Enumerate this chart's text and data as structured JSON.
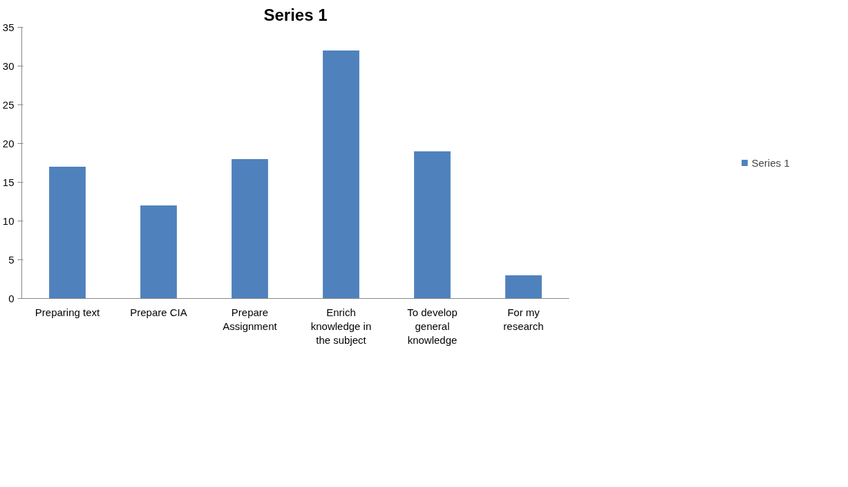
{
  "chart_data": {
    "type": "bar",
    "title": "Series 1",
    "categories": [
      "Preparing text",
      "Prepare CIA",
      "Prepare Assignment",
      "Enrich knowledge in the subject",
      "To develop general knowledge",
      "For my research"
    ],
    "series": [
      {
        "name": "Series 1",
        "color": "#4f81bd",
        "values": [
          17,
          12,
          18,
          32,
          19,
          3
        ]
      }
    ],
    "ylim": [
      0,
      35
    ],
    "yticks": [
      0,
      5,
      10,
      15,
      20,
      25,
      30,
      35
    ],
    "grid": false,
    "legend": "right"
  }
}
